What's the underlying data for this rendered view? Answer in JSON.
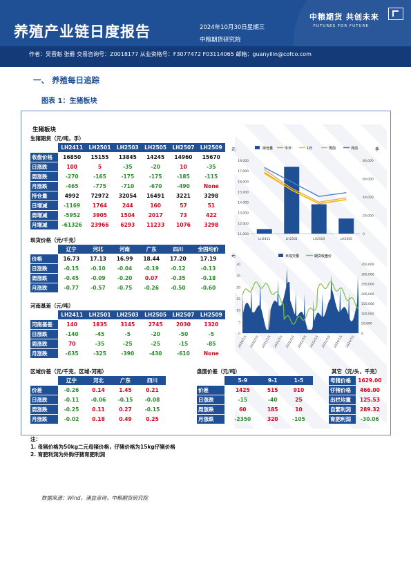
{
  "header": {
    "title": "养殖产业链日度报告",
    "date": "2024年10月30日星期三",
    "org": "中粮期货研究院",
    "logo_cn": "中粮期货  共创未来",
    "logo_en": "·FUTURES FOR FUTURE·",
    "authors": "作者：吴晋魁  张爵  交易咨询号：Z0018177 从业资格号：F3077472 F03114065  邮箱：guanyilin@cofco.com"
  },
  "section": {
    "title": "一、    养殖每日追踪",
    "figure": "图表 1：生猪板块"
  },
  "panel_title": "生猪板块",
  "futures": {
    "title": "生猪期货（元/吨，手）",
    "columns": [
      "LH2411",
      "LH2501",
      "LH2503",
      "LH2505",
      "LH2507",
      "LH2509"
    ],
    "rows": [
      {
        "label": "收盘价格",
        "values": [
          "16850",
          "15155",
          "13845",
          "14245",
          "14960",
          "15670"
        ],
        "colors": [
          "black",
          "black",
          "black",
          "black",
          "black",
          "black"
        ]
      },
      {
        "label": "日涨跌",
        "values": [
          "100",
          "5",
          "-35",
          "-20",
          "10",
          "-35"
        ],
        "colors": [
          "red",
          "red",
          "green",
          "green",
          "red",
          "green"
        ]
      },
      {
        "label": "周涨跌",
        "values": [
          "-270",
          "-165",
          "-175",
          "-175",
          "-185",
          "-115"
        ],
        "colors": [
          "green",
          "green",
          "green",
          "green",
          "green",
          "green"
        ]
      },
      {
        "label": "月涨跌",
        "values": [
          "-465",
          "-775",
          "-710",
          "-670",
          "-490",
          "None"
        ],
        "colors": [
          "green",
          "green",
          "green",
          "green",
          "green",
          "red"
        ]
      },
      {
        "label": "持仓量",
        "values": [
          "4992",
          "72972",
          "32054",
          "16491",
          "3221",
          "3298"
        ],
        "colors": [
          "black",
          "black",
          "black",
          "black",
          "black",
          "black"
        ]
      },
      {
        "label": "日增减",
        "values": [
          "-1169",
          "1764",
          "244",
          "160",
          "57",
          "51"
        ],
        "colors": [
          "green",
          "red",
          "red",
          "red",
          "red",
          "red"
        ]
      },
      {
        "label": "周增减",
        "values": [
          "-5952",
          "3905",
          "1504",
          "2017",
          "73",
          "422"
        ],
        "colors": [
          "green",
          "red",
          "red",
          "red",
          "red",
          "red"
        ]
      },
      {
        "label": "月增减",
        "values": [
          "-61326",
          "23966",
          "6293",
          "11233",
          "1076",
          "3298"
        ],
        "colors": [
          "green",
          "red",
          "red",
          "red",
          "red",
          "red"
        ]
      }
    ]
  },
  "spot": {
    "title": "现货价格（元/千克）",
    "columns": [
      "辽宁",
      "河北",
      "河南",
      "广东",
      "四川",
      "全国均价"
    ],
    "rows": [
      {
        "label": "价格",
        "values": [
          "16.73",
          "17.13",
          "16.99",
          "18.44",
          "17.20",
          "17.19"
        ],
        "colors": [
          "black",
          "black",
          "black",
          "black",
          "black",
          "black"
        ]
      },
      {
        "label": "日涨跌",
        "values": [
          "-0.15",
          "-0.10",
          "-0.04",
          "-0.19",
          "-0.12",
          "-0.13"
        ],
        "colors": [
          "green",
          "green",
          "green",
          "green",
          "green",
          "green"
        ]
      },
      {
        "label": "周涨跌",
        "values": [
          "-0.45",
          "-0.09",
          "-0.20",
          "0.07",
          "-0.35",
          "-0.18"
        ],
        "colors": [
          "green",
          "green",
          "green",
          "red",
          "green",
          "green"
        ]
      },
      {
        "label": "月涨跌",
        "values": [
          "-0.77",
          "-0.57",
          "-0.75",
          "-0.26",
          "-0.50",
          "-0.60"
        ],
        "colors": [
          "green",
          "green",
          "green",
          "green",
          "green",
          "green"
        ]
      }
    ]
  },
  "basis": {
    "title": "河南基差（元/吨）",
    "columns": [
      "LH2411",
      "LH2501",
      "LH2503",
      "LH2505",
      "LH2507",
      "LH2509"
    ],
    "rows": [
      {
        "label": "河南基差",
        "values": [
          "140",
          "1835",
          "3145",
          "2745",
          "2030",
          "1320"
        ],
        "colors": [
          "red",
          "red",
          "red",
          "red",
          "red",
          "red"
        ]
      },
      {
        "label": "日涨跌",
        "values": [
          "-140",
          "-45",
          "-5",
          "-20",
          "-50",
          "-5"
        ],
        "colors": [
          "green",
          "green",
          "green",
          "green",
          "green",
          "green"
        ]
      },
      {
        "label": "周涨跌",
        "values": [
          "70",
          "-35",
          "-25",
          "-25",
          "-15",
          "-85"
        ],
        "colors": [
          "red",
          "green",
          "green",
          "green",
          "green",
          "green"
        ]
      },
      {
        "label": "月涨跌",
        "values": [
          "-635",
          "-325",
          "-390",
          "-430",
          "-610",
          "None"
        ],
        "colors": [
          "green",
          "green",
          "green",
          "green",
          "green",
          "red"
        ]
      }
    ]
  },
  "regional": {
    "title": "区域价差（元/千克，区域-河南）",
    "columns": [
      "辽宁",
      "河北",
      "广东",
      "四川"
    ],
    "rows": [
      {
        "label": "价差",
        "values": [
          "-0.26",
          "0.14",
          "1.45",
          "0.21"
        ],
        "colors": [
          "green",
          "red",
          "red",
          "red"
        ]
      },
      {
        "label": "日涨跌",
        "values": [
          "-0.11",
          "-0.06",
          "-0.15",
          "-0.08"
        ],
        "colors": [
          "green",
          "green",
          "green",
          "green"
        ]
      },
      {
        "label": "周涨跌",
        "values": [
          "-0.25",
          "0.11",
          "0.27",
          "-0.15"
        ],
        "colors": [
          "green",
          "red",
          "red",
          "green"
        ]
      },
      {
        "label": "月涨跌",
        "values": [
          "-0.02",
          "0.18",
          "0.49",
          "0.25"
        ],
        "colors": [
          "green",
          "red",
          "red",
          "red"
        ]
      }
    ]
  },
  "spread": {
    "title": "盘面价差（元/吨）",
    "columns": [
      "5-9",
      "9-1",
      "1-5"
    ],
    "rows": [
      {
        "label": "价差",
        "values": [
          "1425",
          "515",
          "910"
        ],
        "colors": [
          "red",
          "red",
          "red"
        ]
      },
      {
        "label": "日涨跌",
        "values": [
          "-15",
          "-40",
          "25"
        ],
        "colors": [
          "green",
          "green",
          "red"
        ]
      },
      {
        "label": "周涨跌",
        "values": [
          "60",
          "185",
          "10"
        ],
        "colors": [
          "red",
          "red",
          "red"
        ]
      },
      {
        "label": "月涨跌",
        "values": [
          "-2350",
          "320",
          "-105"
        ],
        "colors": [
          "green",
          "red",
          "green"
        ]
      }
    ]
  },
  "other": {
    "title": "其它（元/头，千克）",
    "rows": [
      {
        "label": "母猪价格",
        "value": "1629.00",
        "color": "red"
      },
      {
        "label": "仔猪价格",
        "value": "466.00",
        "color": "red"
      },
      {
        "label": "出栏均重",
        "value": "125.53",
        "color": "red"
      },
      {
        "label": "自繁利润",
        "value": "289.32",
        "color": "red"
      },
      {
        "label": "育肥利润",
        "value": "-30.06",
        "color": "green"
      }
    ]
  },
  "notes": {
    "title": "注：",
    "items": [
      "1. 母猪价格为50kg二元母猪价格，仔猪价格为15kg仔猪价格",
      "2. 育肥利润为外购仔猪育肥利润"
    ]
  },
  "source": "数据来源：Wind，涌益咨询，中粮期货研究院",
  "chart_data": [
    {
      "type": "bar+line",
      "title": "",
      "left_unit": "元",
      "right_unit": "手",
      "categories": [
        "LH2411",
        "LH2501",
        "LH2503",
        "LH2505"
      ],
      "yticks_left": [
        "11,000",
        "12,000",
        "13,000",
        "14,000",
        "15,000",
        "16,000",
        "17,000",
        "18,000"
      ],
      "yticks_right": [
        "0",
        "20,000",
        "40,000",
        "60,000",
        "80,000"
      ],
      "ylim_left": [
        11000,
        18000
      ],
      "ylim_right": [
        0,
        80000
      ],
      "bars": {
        "name": "持仓量",
        "values": [
          4992,
          72972,
          32054,
          16491
        ],
        "color": "#1f4f94"
      },
      "series": [
        {
          "name": "今日",
          "values": [
            16850,
            15155,
            13845,
            14245
          ],
          "color": "#f28e2b"
        },
        {
          "name": "1日",
          "values": [
            16750,
            15150,
            13880,
            14265
          ],
          "color": "#f5c400"
        },
        {
          "name": "周前",
          "values": [
            17120,
            15320,
            14020,
            14420
          ],
          "color": "#e8b04c"
        },
        {
          "name": "月前",
          "values": [
            17315,
            15930,
            14555,
            14915
          ],
          "color": "#4a7fd0"
        }
      ],
      "legend": "top"
    },
    {
      "type": "area+line",
      "title": "",
      "left_unit": "元",
      "yticks_left": [
        "0",
        "5",
        "10",
        "15",
        "20",
        "25",
        "30"
      ],
      "yticks_right": [
        "0",
        "50,000",
        "100,000",
        "150,000",
        "200,000",
        "250,000",
        "300,000",
        "350,000"
      ],
      "ylim_left": [
        0,
        30
      ],
      "ylim_right": [
        0,
        350000
      ],
      "xticks": [
        "2020/1/1",
        "2020/7/1",
        "2021/1/1",
        "2021/7/1",
        "2022/1/1",
        "2022/7/1",
        "2023/1/1",
        "2023/7/1",
        "2024/1/1",
        "2024/7/1"
      ],
      "series": [
        {
          "name": "日成交量",
          "color": "#1f4f94"
        },
        {
          "name": "期货收盘价",
          "color": "#7dc242"
        }
      ],
      "legend": "top"
    }
  ]
}
